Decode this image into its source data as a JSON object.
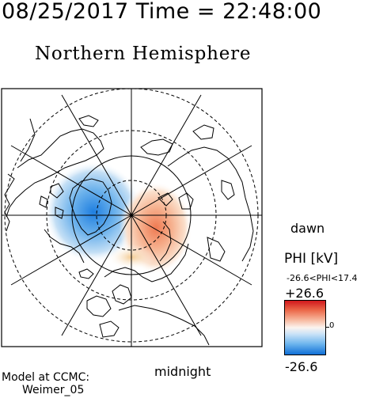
{
  "header": {
    "timestamp": "08/25/2017 Time = 22:48:00",
    "title": "Northern Hemisphere"
  },
  "map": {
    "projection": "polar",
    "labels": {
      "dawn": "dawn",
      "midnight": "midnight"
    },
    "lat_circles_solid": [
      60
    ],
    "lat_circles_dashed": [
      80,
      70,
      50
    ]
  },
  "colorbar": {
    "label": "PHI [kV]",
    "range_text": "-26.6<PHI<17.4",
    "max_label": "+26.6",
    "min_label": "-26.6",
    "zero_label": "0",
    "colors": {
      "max": "#d1181c",
      "mid": "#fcf4ef",
      "min": "#0f6fd6"
    }
  },
  "footer": {
    "model_line1": "Model at CCMC:",
    "model_line2": "Weimer_05"
  }
}
